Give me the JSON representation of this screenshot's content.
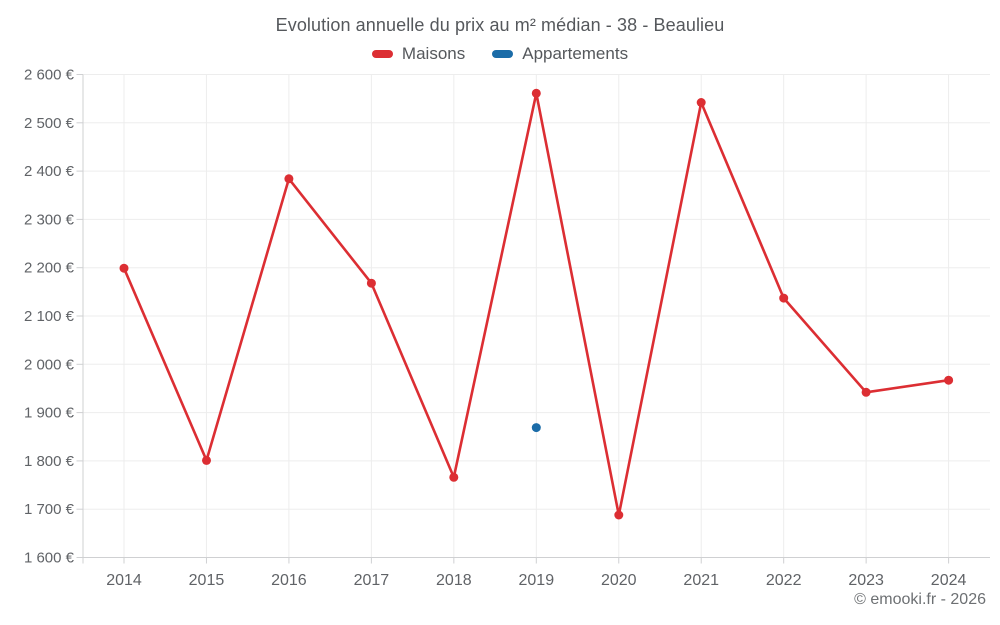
{
  "header": {
    "title": "Evolution annuelle du prix au m² médian - 38 - Beaulieu"
  },
  "footer": {
    "credit": "© emooki.fr - 2026"
  },
  "colors": {
    "maisons": "#dc2e33",
    "appartements": "#1b6ca8",
    "grid": "#ededed",
    "axis": "#cfd0d2",
    "tick_label": "#606367"
  },
  "chart_data": {
    "type": "line",
    "title": "Evolution annuelle du prix au m² médian - 38 - Beaulieu",
    "x_categories": [
      "2014",
      "2015",
      "2016",
      "2017",
      "2018",
      "2019",
      "2020",
      "2021",
      "2022",
      "2023",
      "2024"
    ],
    "series": [
      {
        "name": "Maisons",
        "color": "#dc2e33",
        "values": [
          2199,
          1801,
          2384,
          2168,
          1766,
          2561,
          1688,
          2542,
          2137,
          1942,
          1967
        ]
      },
      {
        "name": "Appartements",
        "color": "#1b6ca8",
        "values": [
          null,
          null,
          null,
          null,
          null,
          1869,
          null,
          null,
          null,
          null,
          null
        ]
      }
    ],
    "ylim": [
      1600,
      2600
    ],
    "ytick_values": [
      1600,
      1700,
      1800,
      1900,
      2000,
      2100,
      2200,
      2300,
      2400,
      2500,
      2600
    ],
    "ytick_labels": [
      "1 600 €",
      "1 700 €",
      "1 800 €",
      "1 900 €",
      "2 000 €",
      "2 100 €",
      "2 200 €",
      "2 300 €",
      "2 400 €",
      "2 500 €",
      "2 600 €"
    ],
    "grid": true,
    "legend_position": "top-center",
    "currency": "€"
  }
}
